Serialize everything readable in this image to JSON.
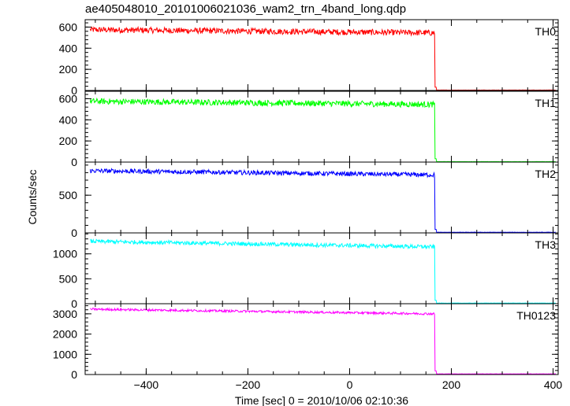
{
  "window": {
    "title": "ae405048010_20101006021036_wam2_trn_4band_long.qdp"
  },
  "chart_data": {
    "type": "line",
    "title": "ae405048010_20101006021036_wam2_trn_4band_long.qdp",
    "xlabel": "Time [sec] 0 = 2010/10/06 02:10:36",
    "ylabel": "Counts/sec",
    "xlim": [
      -520,
      410
    ],
    "x_ticks": [
      -400,
      -200,
      0,
      200,
      400
    ],
    "x_tick_labels": [
      "−400",
      "−200",
      "0",
      "200",
      "400"
    ],
    "drop_time": 168,
    "series": [
      {
        "name": "TH0",
        "color": "#ff0000",
        "ylim": [
          0,
          670
        ],
        "y_ticks": [
          0,
          200,
          400,
          600
        ],
        "y_tick_labels": [
          "0",
          "200",
          "400",
          "600"
        ],
        "level_start": 575,
        "level_end": 545,
        "noise": 28,
        "level_after": 4,
        "points": [
          [
            -510,
            575
          ],
          [
            -400,
            570
          ],
          [
            -300,
            565
          ],
          [
            -200,
            562
          ],
          [
            -100,
            558
          ],
          [
            0,
            555
          ],
          [
            100,
            550
          ],
          [
            165,
            545
          ],
          [
            170,
            20
          ],
          [
            175,
            4
          ],
          [
            300,
            4
          ],
          [
            400,
            4
          ]
        ]
      },
      {
        "name": "TH1",
        "color": "#00ff00",
        "ylim": [
          0,
          670
        ],
        "y_ticks": [
          0,
          200,
          400,
          600
        ],
        "y_tick_labels": [
          "0",
          "200",
          "400",
          "600"
        ],
        "level_start": 575,
        "level_end": 545,
        "noise": 28,
        "level_after": 4,
        "points": [
          [
            -510,
            575
          ],
          [
            -400,
            572
          ],
          [
            -300,
            568
          ],
          [
            -200,
            564
          ],
          [
            -100,
            558
          ],
          [
            0,
            554
          ],
          [
            100,
            550
          ],
          [
            165,
            545
          ],
          [
            170,
            20
          ],
          [
            175,
            4
          ],
          [
            300,
            4
          ],
          [
            400,
            4
          ]
        ]
      },
      {
        "name": "TH2",
        "color": "#0000ff",
        "ylim": [
          0,
          940
        ],
        "y_ticks": [
          0,
          500
        ],
        "y_tick_labels": [
          "0",
          "500"
        ],
        "level_start": 825,
        "level_end": 770,
        "noise": 30,
        "level_after": 8,
        "points": [
          [
            -510,
            825
          ],
          [
            -400,
            815
          ],
          [
            -300,
            805
          ],
          [
            -200,
            795
          ],
          [
            -100,
            790
          ],
          [
            0,
            782
          ],
          [
            100,
            775
          ],
          [
            165,
            770
          ],
          [
            170,
            40
          ],
          [
            175,
            8
          ],
          [
            300,
            8
          ],
          [
            400,
            8
          ]
        ]
      },
      {
        "name": "TH3",
        "color": "#00ffff",
        "ylim": [
          0,
          1420
        ],
        "y_ticks": [
          0,
          500,
          1000
        ],
        "y_tick_labels": [
          "0",
          "500",
          "1000"
        ],
        "level_start": 1250,
        "level_end": 1140,
        "noise": 40,
        "level_after": 12,
        "points": [
          [
            -510,
            1250
          ],
          [
            -400,
            1235
          ],
          [
            -300,
            1215
          ],
          [
            -200,
            1200
          ],
          [
            -100,
            1180
          ],
          [
            0,
            1165
          ],
          [
            100,
            1150
          ],
          [
            165,
            1140
          ],
          [
            170,
            60
          ],
          [
            175,
            12
          ],
          [
            300,
            12
          ],
          [
            400,
            12
          ]
        ]
      },
      {
        "name": "TH0123",
        "color": "#ff00ff",
        "ylim": [
          0,
          3500
        ],
        "y_ticks": [
          0,
          1000,
          2000,
          3000
        ],
        "y_tick_labels": [
          "0",
          "1000",
          "2000",
          "3000"
        ],
        "level_start": 3230,
        "level_end": 3000,
        "noise": 55,
        "level_after": 30,
        "points": [
          [
            -510,
            3230
          ],
          [
            -400,
            3190
          ],
          [
            -300,
            3150
          ],
          [
            -200,
            3110
          ],
          [
            -100,
            3080
          ],
          [
            0,
            3050
          ],
          [
            100,
            3025
          ],
          [
            165,
            3000
          ],
          [
            170,
            150
          ],
          [
            175,
            30
          ],
          [
            300,
            30
          ],
          [
            400,
            30
          ]
        ]
      }
    ]
  }
}
